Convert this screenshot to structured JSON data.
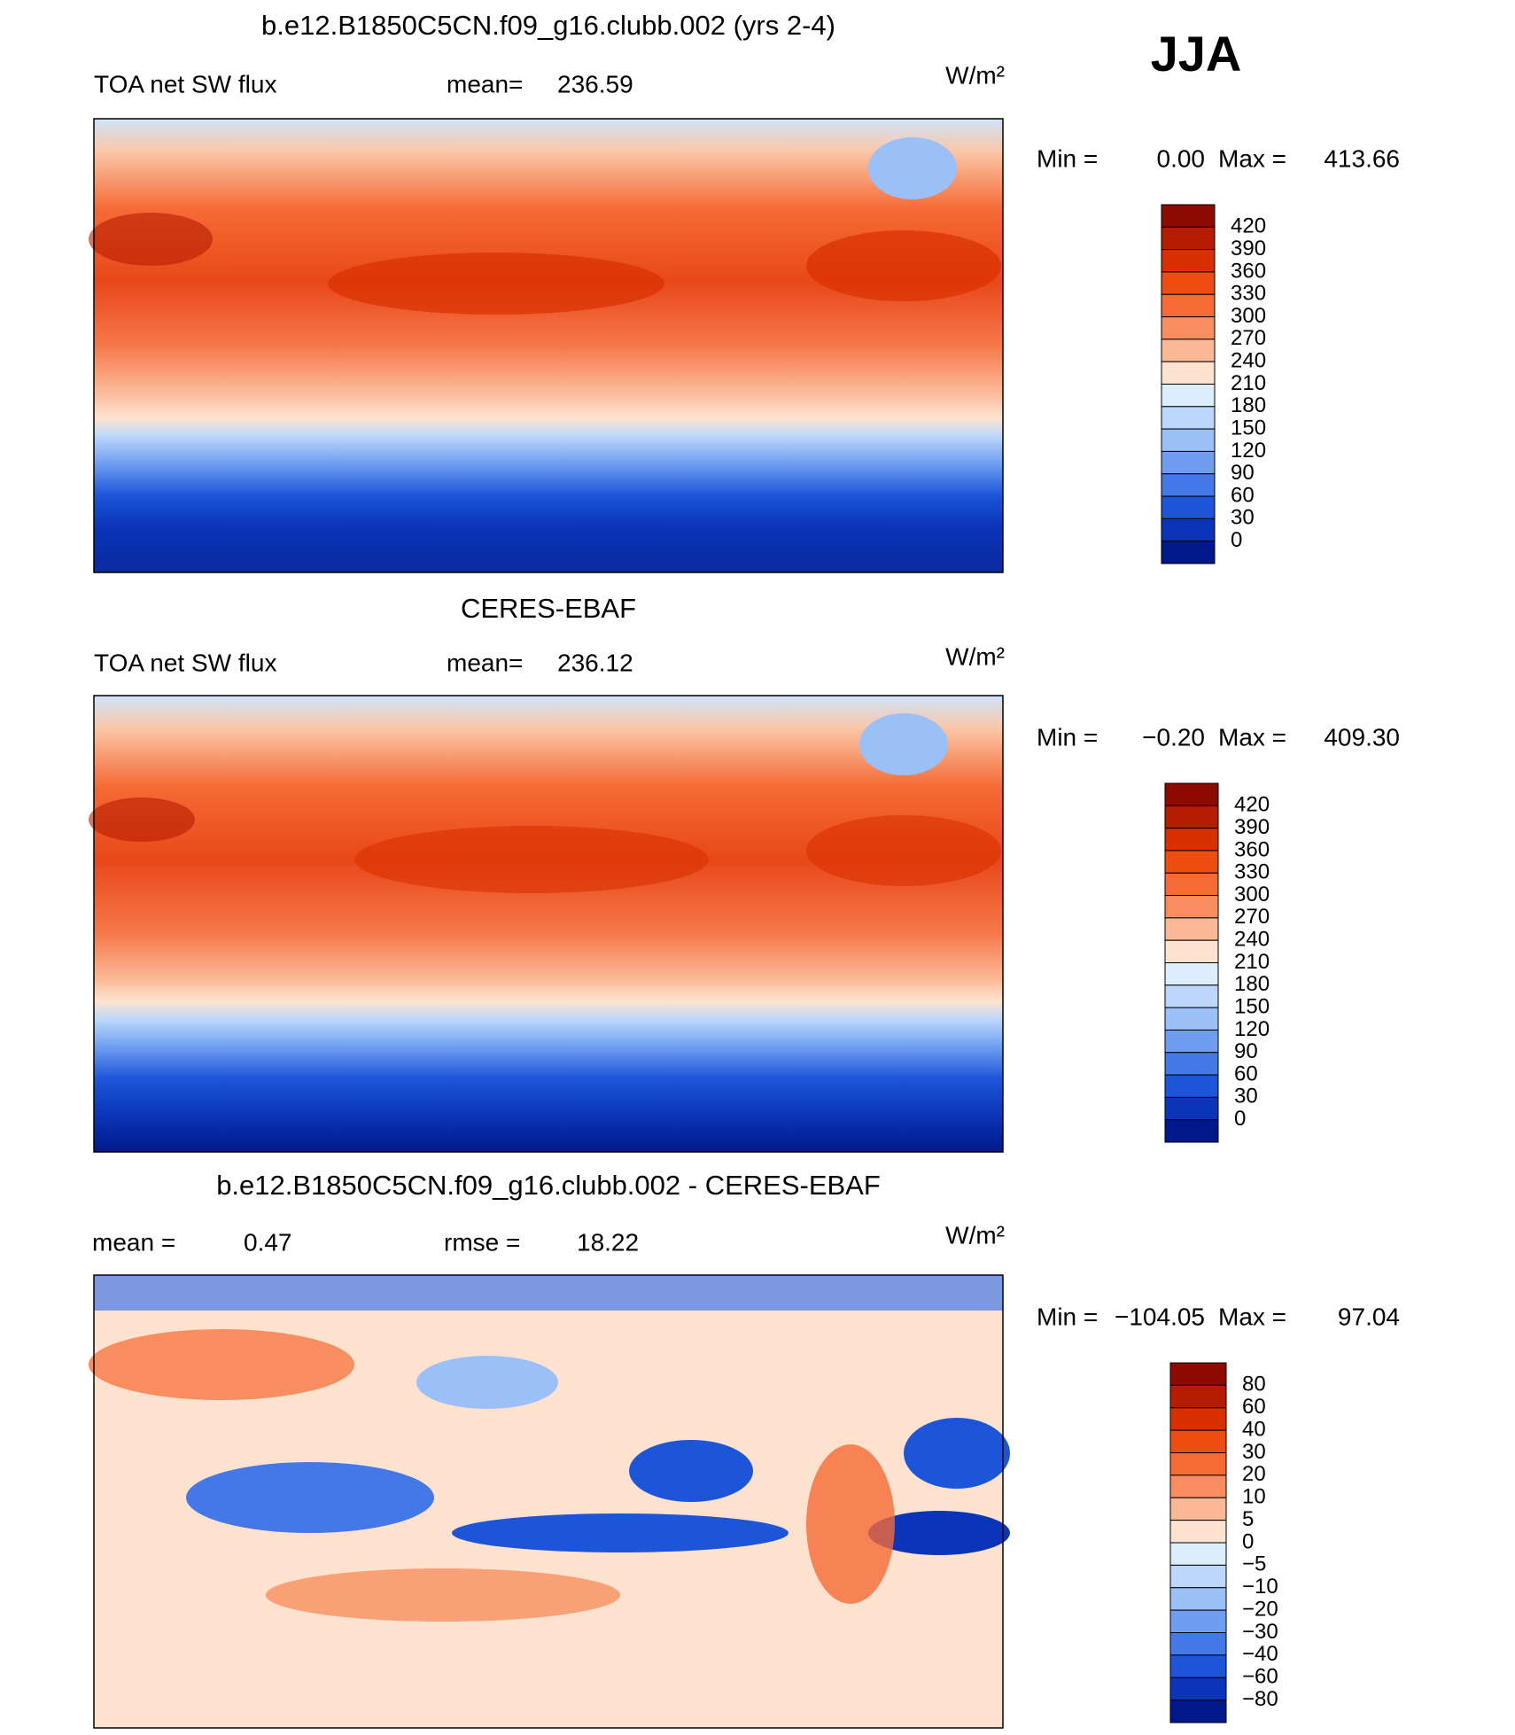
{
  "header": {
    "season": "JJA"
  },
  "panels": [
    {
      "title": "b.e12.B1850C5CN.f09_g16.clubb.002 (yrs 2-4)",
      "field": "TOA net SW flux",
      "stats": [
        {
          "label": "mean=",
          "value": "236.59"
        }
      ],
      "units": "W/m²",
      "min_label": "Min =",
      "min": "0.00",
      "max_label": "Max =",
      "max": "413.66",
      "colorbar": {
        "labels": [
          "420",
          "390",
          "360",
          "330",
          "300",
          "270",
          "240",
          "210",
          "180",
          "150",
          "120",
          "90",
          "60",
          "30",
          "0"
        ],
        "colors": [
          "#8c0a00",
          "#b51c00",
          "#d93000",
          "#ee4d12",
          "#f56a35",
          "#f88e60",
          "#fbb896",
          "#fde3cf",
          "#dceefc",
          "#bcd7fb",
          "#9bbff7",
          "#6f9ef0",
          "#4478e6",
          "#1d55d9",
          "#0a35b8",
          "#00188a"
        ]
      }
    },
    {
      "title": "CERES-EBAF",
      "field": "TOA net SW flux",
      "stats": [
        {
          "label": "mean=",
          "value": "236.12"
        }
      ],
      "units": "W/m²",
      "min_label": "Min =",
      "min": "−0.20",
      "max_label": "Max =",
      "max": "409.30",
      "colorbar": {
        "labels": [
          "420",
          "390",
          "360",
          "330",
          "300",
          "270",
          "240",
          "210",
          "180",
          "150",
          "120",
          "90",
          "60",
          "30",
          "0"
        ],
        "colors": [
          "#8c0a00",
          "#b51c00",
          "#d93000",
          "#ee4d12",
          "#f56a35",
          "#f88e60",
          "#fbb896",
          "#fde3cf",
          "#dceefc",
          "#bcd7fb",
          "#9bbff7",
          "#6f9ef0",
          "#4478e6",
          "#1d55d9",
          "#0a35b8",
          "#00188a"
        ]
      }
    },
    {
      "title": "b.e12.B1850C5CN.f09_g16.clubb.002 - CERES-EBAF",
      "stats": [
        {
          "label": "mean =",
          "value": "0.47"
        },
        {
          "label": "rmse =",
          "value": "18.22"
        }
      ],
      "units": "W/m²",
      "min_label": "Min =",
      "min": "−104.05",
      "max_label": "Max =",
      "max": "97.04",
      "colorbar": {
        "labels": [
          "80",
          "60",
          "40",
          "30",
          "20",
          "10",
          "5",
          "0",
          "−5",
          "−10",
          "−20",
          "−30",
          "−40",
          "−60",
          "−80"
        ],
        "colors": [
          "#8c0a00",
          "#b51c00",
          "#d93000",
          "#ee4d12",
          "#f56a35",
          "#f88e60",
          "#fbb896",
          "#fde3cf",
          "#dceefc",
          "#bcd7fb",
          "#9bbff7",
          "#6f9ef0",
          "#4478e6",
          "#1d55d9",
          "#0a35b8",
          "#00188a"
        ]
      }
    }
  ]
}
